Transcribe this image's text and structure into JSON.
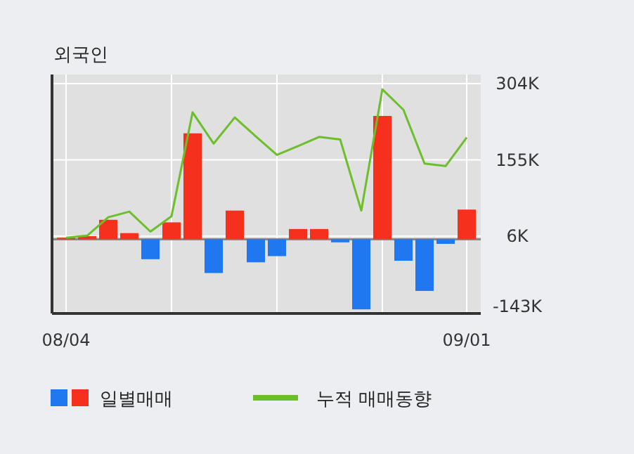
{
  "chart_data": {
    "type": "bar",
    "title": "외국인",
    "categories": [
      "08/04",
      null,
      null,
      null,
      null,
      null,
      null,
      null,
      null,
      null,
      null,
      null,
      null,
      null,
      null,
      null,
      null,
      null,
      null,
      "09/01"
    ],
    "series": [
      {
        "name": "일별매매",
        "axis": "y2",
        "values": [
          3,
          6,
          38,
          12,
          -39,
          33,
          207,
          -66,
          56,
          -45,
          -33,
          20,
          20,
          -6,
          -137,
          241,
          -42,
          -101,
          -9,
          58
        ],
        "colors": [
          "#f5301c",
          "#f5301c",
          "#f5301c",
          "#f5301c",
          "#1f78f0",
          "#f5301c",
          "#f5301c",
          "#1f78f0",
          "#f5301c",
          "#1f78f0",
          "#1f78f0",
          "#f5301c",
          "#f5301c",
          "#1f78f0",
          "#1f78f0",
          "#f5301c",
          "#1f78f0",
          "#1f78f0",
          "#1f78f0",
          "#f5301c"
        ]
      },
      {
        "name": "누적 매매동향",
        "type": "line",
        "axis": "y2",
        "color": "#6cbf2a",
        "values": [
          3,
          7,
          43,
          54,
          15,
          45,
          248,
          187,
          238,
          201,
          165,
          182,
          200,
          195,
          56,
          293,
          253,
          148,
          143,
          199
        ]
      }
    ],
    "y2lim": [
      -145,
      322
    ],
    "y2ticks": [
      {
        "value": 304,
        "label": "304K"
      },
      {
        "value": 155,
        "label": "155K"
      },
      {
        "value": 6,
        "label": "6K"
      },
      {
        "value": -143,
        "label": "-143K"
      }
    ],
    "grid": true,
    "legend": "bottom"
  }
}
